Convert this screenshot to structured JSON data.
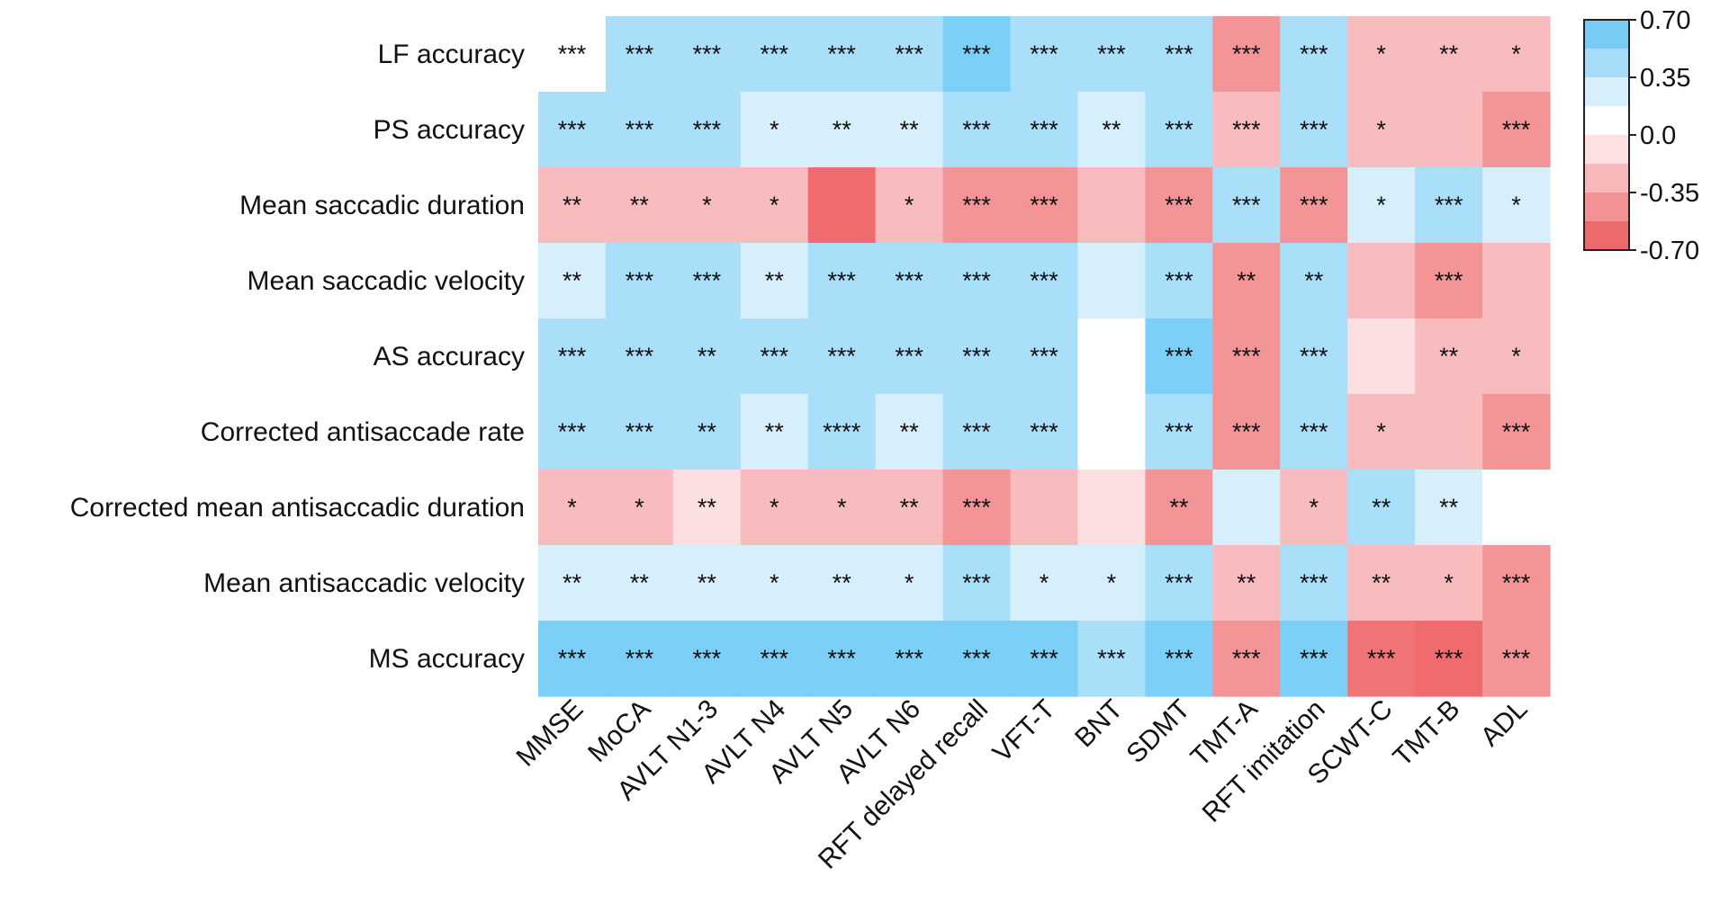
{
  "chart_data": {
    "type": "heatmap",
    "title": "",
    "xlabel": "",
    "ylabel": "",
    "rows": [
      "LF accuracy",
      "PS accuracy",
      "Mean saccadic duration",
      "Mean saccadic velocity",
      "AS accuracy",
      "Corrected antisaccade rate",
      "Corrected mean antisaccadic duration",
      "Mean antisaccadic velocity",
      "MS accuracy"
    ],
    "columns": [
      "MMSE",
      "MoCA",
      "AVLT N1-3",
      "AVLT N4",
      "AVLT N5",
      "AVLT N6",
      "RFT delayed recall",
      "VFT-T",
      "BNT",
      "SDMT",
      "TMT-A",
      "RFT imitation",
      "SCWT-C",
      "TMT-B",
      "ADL"
    ],
    "values": [
      [
        0.05,
        0.3,
        0.3,
        0.3,
        0.3,
        0.3,
        0.5,
        0.3,
        0.3,
        0.3,
        -0.4,
        0.3,
        -0.3,
        -0.3,
        -0.3
      ],
      [
        0.3,
        0.3,
        0.3,
        0.2,
        0.2,
        0.2,
        0.3,
        0.3,
        0.2,
        0.3,
        -0.3,
        0.3,
        -0.3,
        -0.3,
        -0.4
      ],
      [
        -0.3,
        -0.3,
        -0.3,
        -0.3,
        -0.6,
        -0.3,
        -0.4,
        -0.4,
        -0.3,
        -0.4,
        0.3,
        -0.4,
        0.2,
        0.3,
        0.2
      ],
      [
        0.2,
        0.3,
        0.3,
        0.2,
        0.3,
        0.3,
        0.3,
        0.3,
        0.2,
        0.3,
        -0.4,
        0.3,
        -0.3,
        -0.4,
        -0.3
      ],
      [
        0.3,
        0.3,
        0.3,
        0.3,
        0.3,
        0.3,
        0.3,
        0.3,
        0.05,
        0.5,
        -0.4,
        0.3,
        -0.2,
        -0.3,
        -0.3
      ],
      [
        0.3,
        0.3,
        0.3,
        0.2,
        0.3,
        0.2,
        0.3,
        0.3,
        0.05,
        0.3,
        -0.4,
        0.3,
        -0.3,
        -0.3,
        -0.4
      ],
      [
        -0.3,
        -0.3,
        -0.2,
        -0.3,
        -0.3,
        -0.3,
        -0.4,
        -0.3,
        -0.2,
        -0.4,
        0.2,
        -0.3,
        0.3,
        0.2,
        0.05
      ],
      [
        0.2,
        0.2,
        0.2,
        0.2,
        0.2,
        0.2,
        0.3,
        0.2,
        0.2,
        0.3,
        -0.3,
        0.3,
        -0.3,
        -0.3,
        -0.4
      ],
      [
        0.5,
        0.5,
        0.5,
        0.5,
        0.5,
        0.5,
        0.5,
        0.5,
        0.3,
        0.5,
        -0.4,
        0.5,
        -0.5,
        -0.6,
        -0.4
      ]
    ],
    "significance": [
      [
        "***",
        "***",
        "***",
        "***",
        "***",
        "***",
        "***",
        "***",
        "***",
        "***",
        "***",
        "***",
        "*",
        "**",
        "*"
      ],
      [
        "***",
        "***",
        "***",
        "*",
        "**",
        "**",
        "***",
        "***",
        "**",
        "***",
        "***",
        "***",
        "*",
        "",
        "***"
      ],
      [
        "**",
        "**",
        "*",
        "*",
        "",
        "*",
        "***",
        "***",
        "",
        "***",
        "***",
        "***",
        "*",
        "***",
        "*"
      ],
      [
        "**",
        "***",
        "***",
        "**",
        "***",
        "***",
        "***",
        "***",
        "",
        "***",
        "**",
        "**",
        "",
        "***",
        ""
      ],
      [
        "***",
        "***",
        "**",
        "***",
        "***",
        "***",
        "***",
        "***",
        "",
        "***",
        "***",
        "***",
        "",
        "**",
        "*"
      ],
      [
        "***",
        "***",
        "**",
        "**",
        "****",
        "**",
        "***",
        "***",
        "",
        "***",
        "***",
        "***",
        "*",
        "",
        "***"
      ],
      [
        "*",
        "*",
        "**",
        "*",
        "*",
        "**",
        "***",
        "",
        "",
        "**",
        "",
        "*",
        "**",
        "**",
        ""
      ],
      [
        "**",
        "**",
        "**",
        "*",
        "**",
        "*",
        "***",
        "*",
        "*",
        "***",
        "**",
        "***",
        "**",
        "*",
        "***"
      ],
      [
        "***",
        "***",
        "***",
        "***",
        "***",
        "***",
        "***",
        "***",
        "***",
        "***",
        "***",
        "***",
        "***",
        "***",
        "***"
      ]
    ],
    "color_scale": {
      "range": [
        -0.7,
        0.7
      ],
      "tick_labels": [
        "0.70",
        "0.35",
        "0.0",
        "-0.35",
        "-0.70"
      ],
      "bins": [
        {
          "from": 0.525,
          "to": 0.7,
          "color": "#78cbf4"
        },
        {
          "from": 0.35,
          "to": 0.525,
          "color": "#a6dcf7"
        },
        {
          "from": 0.175,
          "to": 0.35,
          "color": "#d6effb"
        },
        {
          "from": 0.0,
          "to": 0.175,
          "color": "#ffffff"
        },
        {
          "from": -0.175,
          "to": 0.0,
          "color": "#fde0e1"
        },
        {
          "from": -0.35,
          "to": -0.175,
          "color": "#f9b9bb"
        },
        {
          "from": -0.525,
          "to": -0.35,
          "color": "#f39294"
        },
        {
          "from": -0.7,
          "to": -0.525,
          "color": "#ec6a6c"
        }
      ]
    },
    "cell_colors": {
      "0.6": "#7ccff7",
      "0.5": "#7ccff7",
      "0.3": "#a9dff9",
      "0.2": "#d6effa",
      "0.05": "#ffffff",
      "-0.2": "#fce0e1",
      "-0.3": "#f9bcbe",
      "-0.4": "#f39597",
      "-0.5": "#f17577",
      "-0.6": "#ef6b6d"
    },
    "legend_position": "top-right"
  }
}
